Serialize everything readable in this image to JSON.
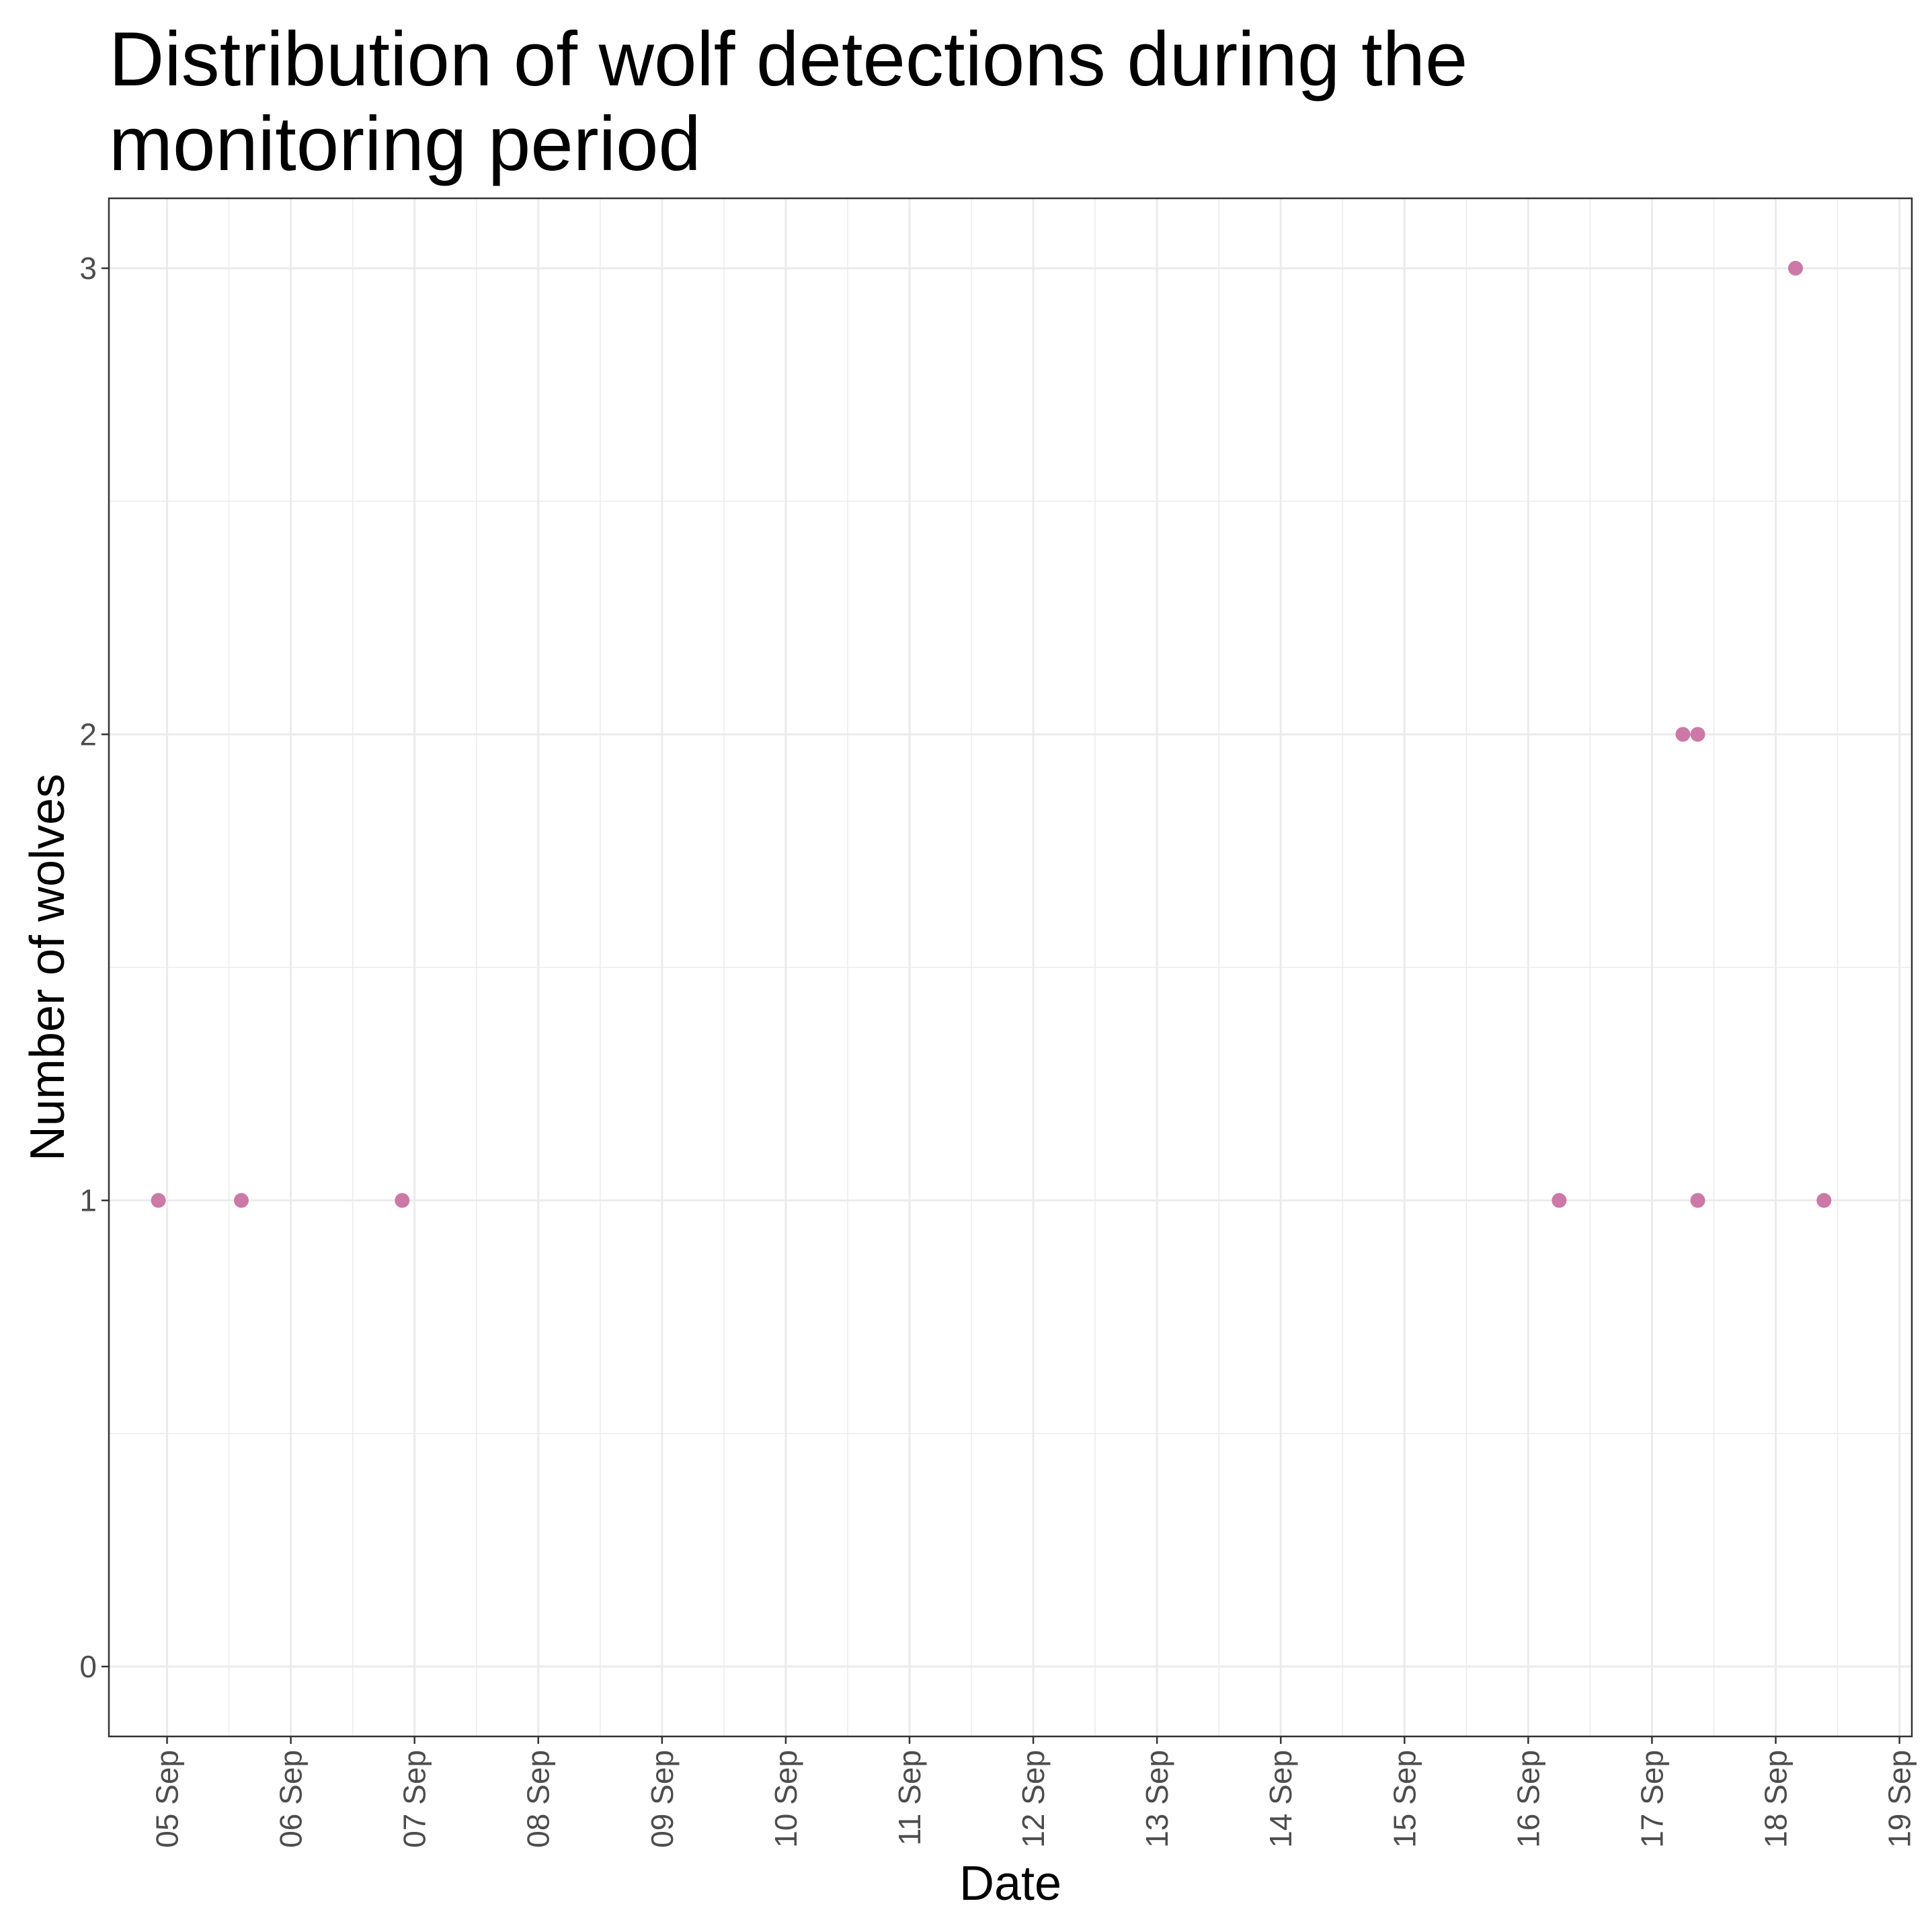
{
  "chart_data": {
    "type": "scatter",
    "title_lines": [
      "Distribution of wolf detections during the",
      "monitoring period"
    ],
    "xlabel": "Date",
    "ylabel": "Number of wolves",
    "x_unit": "days since 05 Sep",
    "xlim": [
      -0.47,
      14.1
    ],
    "ylim": [
      -0.15,
      3.15
    ],
    "yticks": [
      0,
      1,
      2,
      3
    ],
    "xticks": [
      {
        "value": 0,
        "label": "05 Sep"
      },
      {
        "value": 1,
        "label": "06 Sep"
      },
      {
        "value": 2,
        "label": "07 Sep"
      },
      {
        "value": 3,
        "label": "08 Sep"
      },
      {
        "value": 4,
        "label": "09 Sep"
      },
      {
        "value": 5,
        "label": "10 Sep"
      },
      {
        "value": 6,
        "label": "11 Sep"
      },
      {
        "value": 7,
        "label": "12 Sep"
      },
      {
        "value": 8,
        "label": "13 Sep"
      },
      {
        "value": 9,
        "label": "14 Sep"
      },
      {
        "value": 10,
        "label": "15 Sep"
      },
      {
        "value": 11,
        "label": "16 Sep"
      },
      {
        "value": 12,
        "label": "17 Sep"
      },
      {
        "value": 13,
        "label": "18 Sep"
      },
      {
        "value": 14,
        "label": "19 Sep"
      }
    ],
    "grid": true,
    "point_color": "#cc79a7",
    "grid_color": "#ebebeb",
    "series": [
      {
        "name": "Wolf detections",
        "points": [
          {
            "x": -0.07,
            "y": 1
          },
          {
            "x": 0.6,
            "y": 1
          },
          {
            "x": 1.9,
            "y": 1
          },
          {
            "x": 11.25,
            "y": 1
          },
          {
            "x": 12.25,
            "y": 2
          },
          {
            "x": 12.37,
            "y": 2
          },
          {
            "x": 12.37,
            "y": 1
          },
          {
            "x": 13.16,
            "y": 3
          },
          {
            "x": 13.39,
            "y": 1
          }
        ]
      }
    ]
  }
}
